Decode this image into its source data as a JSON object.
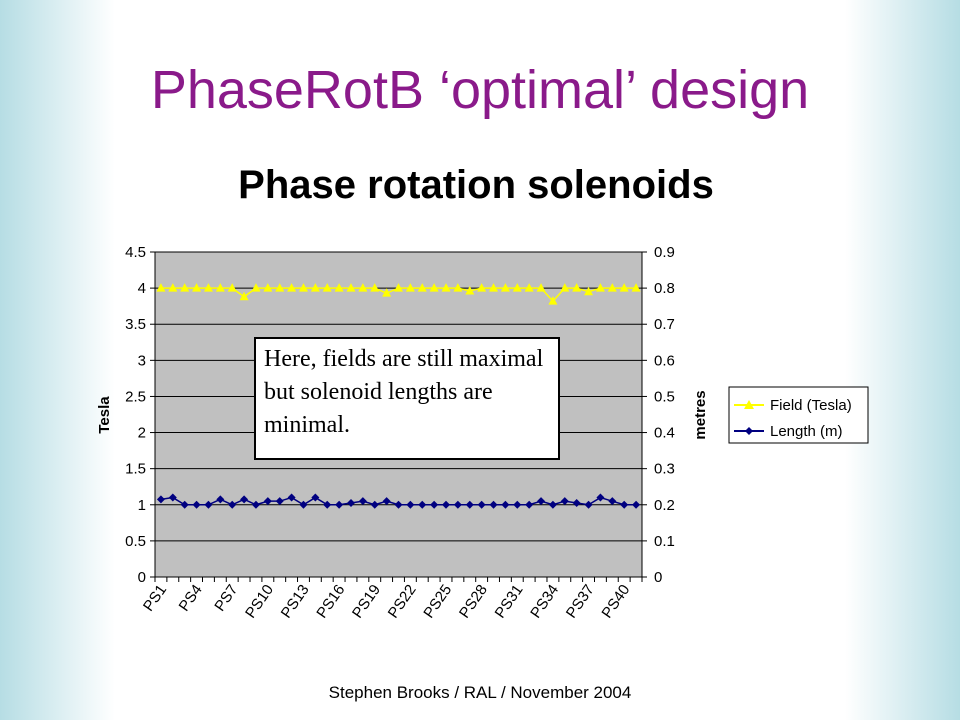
{
  "slide": {
    "title": "PhaseRotB ‘optimal’ design",
    "footer": "Stephen Brooks / RAL / November 2004",
    "annotation": "Here, fields are still maximal  but solenoid lengths are minimal."
  },
  "chart_data": {
    "type": "line",
    "title": "Phase rotation solenoids",
    "ylabel": "Tesla",
    "y2label": "metres",
    "ylim": [
      0,
      4.5
    ],
    "y2lim": [
      0,
      0.9
    ],
    "yticks": [
      "0",
      "0.5",
      "1",
      "1.5",
      "2",
      "2.5",
      "3",
      "3.5",
      "4",
      "4.5"
    ],
    "y2ticks": [
      "0",
      "0.1",
      "0.2",
      "0.3",
      "0.4",
      "0.5",
      "0.6",
      "0.7",
      "0.8",
      "0.9"
    ],
    "x": [
      "PS1",
      "PS2",
      "PS3",
      "PS4",
      "PS5",
      "PS6",
      "PS7",
      "PS8",
      "PS9",
      "PS10",
      "PS11",
      "PS12",
      "PS13",
      "PS14",
      "PS15",
      "PS16",
      "PS17",
      "PS18",
      "PS19",
      "PS20",
      "PS21",
      "PS22",
      "PS23",
      "PS24",
      "PS25",
      "PS26",
      "PS27",
      "PS28",
      "PS29",
      "PS30",
      "PS31",
      "PS32",
      "PS33",
      "PS34",
      "PS35",
      "PS36",
      "PS37",
      "PS38",
      "PS39",
      "PS40",
      "PS41"
    ],
    "x_labeled": [
      "PS1",
      "PS4",
      "PS7",
      "PS10",
      "PS13",
      "PS16",
      "PS19",
      "PS22",
      "PS25",
      "PS28",
      "PS31",
      "PS34",
      "PS37",
      "PS40"
    ],
    "plot_background": "#c0c0c0",
    "grid": "horizontal",
    "legend_position": "right",
    "series": [
      {
        "name": "Field (Tesla)",
        "axis": "left",
        "color": "#ffff00",
        "marker": "triangle",
        "values": [
          4,
          4,
          4,
          4,
          4,
          4,
          4,
          3.88,
          4,
          4,
          4,
          4,
          4,
          4,
          4,
          4,
          4,
          4,
          4,
          3.93,
          4,
          4,
          4,
          4,
          4,
          4,
          3.96,
          4,
          4,
          4,
          4,
          4,
          4,
          3.82,
          4,
          4,
          3.95,
          4,
          4,
          4,
          4
        ]
      },
      {
        "name": "Length (m)",
        "axis": "right",
        "color": "#000080",
        "marker": "diamond",
        "values": [
          0.215,
          0.22,
          0.2,
          0.2,
          0.2,
          0.215,
          0.2,
          0.215,
          0.2,
          0.21,
          0.21,
          0.22,
          0.2,
          0.22,
          0.2,
          0.2,
          0.205,
          0.21,
          0.2,
          0.21,
          0.2,
          0.2,
          0.2,
          0.2,
          0.2,
          0.2,
          0.2,
          0.2,
          0.2,
          0.2,
          0.2,
          0.2,
          0.21,
          0.2,
          0.21,
          0.205,
          0.2,
          0.22,
          0.21,
          0.2,
          0.2
        ]
      }
    ]
  }
}
